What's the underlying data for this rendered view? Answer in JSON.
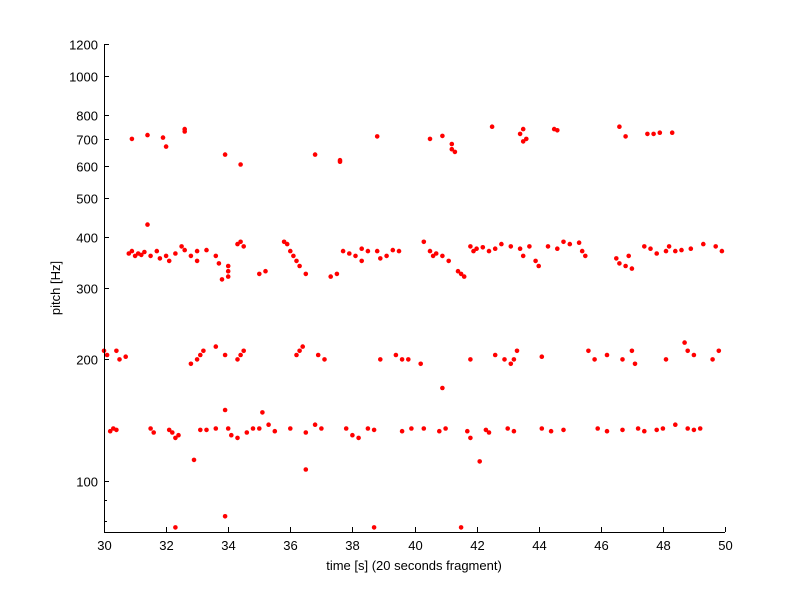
{
  "chart_data": {
    "type": "scatter",
    "xlabel": "time [s] (20 seconds fragment)",
    "ylabel": "pitch [Hz]",
    "xlim": [
      30,
      50
    ],
    "ylim": [
      75,
      1200
    ],
    "yscale": "log",
    "grid": false,
    "marker_color": "#ff0000",
    "x_ticks": [
      30,
      32,
      34,
      36,
      38,
      40,
      42,
      44,
      46,
      48,
      50
    ],
    "y_ticks": [
      100,
      200,
      300,
      400,
      500,
      600,
      700,
      800,
      1000,
      1200
    ],
    "y_minor_ticks": [
      80,
      90
    ],
    "points": [
      [
        30.9,
        700
      ],
      [
        31.4,
        715
      ],
      [
        31.9,
        705
      ],
      [
        32.0,
        670
      ],
      [
        32.6,
        730
      ],
      [
        32.6,
        740
      ],
      [
        33.9,
        640
      ],
      [
        34.4,
        605
      ],
      [
        36.8,
        640
      ],
      [
        37.6,
        615
      ],
      [
        37.6,
        620
      ],
      [
        38.8,
        710
      ],
      [
        40.5,
        700
      ],
      [
        40.9,
        712
      ],
      [
        41.2,
        680
      ],
      [
        41.2,
        660
      ],
      [
        41.3,
        650
      ],
      [
        42.5,
        750
      ],
      [
        43.4,
        720
      ],
      [
        43.5,
        740
      ],
      [
        43.6,
        700
      ],
      [
        43.5,
        690
      ],
      [
        44.5,
        740
      ],
      [
        44.6,
        735
      ],
      [
        46.6,
        750
      ],
      [
        46.8,
        710
      ],
      [
        47.5,
        720
      ],
      [
        47.7,
        720
      ],
      [
        47.9,
        725
      ],
      [
        48.3,
        725
      ],
      [
        31.4,
        430
      ],
      [
        30.8,
        365
      ],
      [
        30.9,
        370
      ],
      [
        31.0,
        360
      ],
      [
        31.1,
        365
      ],
      [
        31.2,
        362
      ],
      [
        31.3,
        368
      ],
      [
        31.5,
        360
      ],
      [
        31.7,
        370
      ],
      [
        31.8,
        355
      ],
      [
        32.0,
        360
      ],
      [
        32.1,
        350
      ],
      [
        32.3,
        365
      ],
      [
        32.5,
        380
      ],
      [
        32.6,
        372
      ],
      [
        32.8,
        360
      ],
      [
        33.0,
        370
      ],
      [
        33.0,
        350
      ],
      [
        33.3,
        372
      ],
      [
        33.6,
        360
      ],
      [
        33.7,
        345
      ],
      [
        33.8,
        315
      ],
      [
        34.0,
        340
      ],
      [
        34.0,
        330
      ],
      [
        34.0,
        320
      ],
      [
        34.3,
        385
      ],
      [
        34.4,
        390
      ],
      [
        34.5,
        380
      ],
      [
        35.0,
        325
      ],
      [
        35.2,
        330
      ],
      [
        35.8,
        390
      ],
      [
        35.9,
        385
      ],
      [
        36.0,
        370
      ],
      [
        36.1,
        360
      ],
      [
        36.2,
        350
      ],
      [
        36.3,
        340
      ],
      [
        36.5,
        325
      ],
      [
        37.3,
        320
      ],
      [
        37.5,
        325
      ],
      [
        37.7,
        370
      ],
      [
        37.9,
        365
      ],
      [
        38.1,
        360
      ],
      [
        38.3,
        350
      ],
      [
        38.3,
        375
      ],
      [
        38.5,
        370
      ],
      [
        38.8,
        370
      ],
      [
        38.9,
        355
      ],
      [
        39.1,
        360
      ],
      [
        39.3,
        372
      ],
      [
        39.5,
        370
      ],
      [
        40.3,
        390
      ],
      [
        40.5,
        370
      ],
      [
        40.6,
        360
      ],
      [
        40.7,
        365
      ],
      [
        40.9,
        360
      ],
      [
        41.1,
        350
      ],
      [
        41.4,
        330
      ],
      [
        41.5,
        325
      ],
      [
        41.6,
        320
      ],
      [
        41.8,
        380
      ],
      [
        41.9,
        370
      ],
      [
        42.0,
        375
      ],
      [
        42.2,
        378
      ],
      [
        42.4,
        370
      ],
      [
        42.6,
        375
      ],
      [
        42.8,
        385
      ],
      [
        43.1,
        380
      ],
      [
        43.4,
        375
      ],
      [
        43.5,
        360
      ],
      [
        43.7,
        380
      ],
      [
        43.9,
        350
      ],
      [
        44.0,
        340
      ],
      [
        44.3,
        380
      ],
      [
        44.6,
        375
      ],
      [
        44.8,
        390
      ],
      [
        45.0,
        385
      ],
      [
        45.3,
        388
      ],
      [
        45.4,
        370
      ],
      [
        45.5,
        360
      ],
      [
        46.5,
        355
      ],
      [
        46.6,
        345
      ],
      [
        46.8,
        340
      ],
      [
        46.9,
        360
      ],
      [
        47.0,
        335
      ],
      [
        47.4,
        380
      ],
      [
        47.6,
        375
      ],
      [
        47.8,
        365
      ],
      [
        48.1,
        370
      ],
      [
        48.2,
        380
      ],
      [
        48.4,
        370
      ],
      [
        48.6,
        372
      ],
      [
        48.9,
        375
      ],
      [
        49.3,
        385
      ],
      [
        49.7,
        380
      ],
      [
        49.9,
        370
      ],
      [
        30.0,
        210
      ],
      [
        30.1,
        205
      ],
      [
        30.4,
        210
      ],
      [
        30.5,
        200
      ],
      [
        30.7,
        203
      ],
      [
        32.8,
        195
      ],
      [
        33.0,
        200
      ],
      [
        33.1,
        205
      ],
      [
        33.2,
        210
      ],
      [
        33.6,
        215
      ],
      [
        33.9,
        205
      ],
      [
        34.3,
        200
      ],
      [
        34.4,
        205
      ],
      [
        34.5,
        210
      ],
      [
        36.2,
        205
      ],
      [
        36.3,
        210
      ],
      [
        36.4,
        215
      ],
      [
        36.9,
        205
      ],
      [
        37.1,
        200
      ],
      [
        38.9,
        200
      ],
      [
        39.4,
        205
      ],
      [
        39.6,
        200
      ],
      [
        39.8,
        200
      ],
      [
        40.2,
        195
      ],
      [
        41.8,
        200
      ],
      [
        42.6,
        205
      ],
      [
        42.9,
        200
      ],
      [
        43.1,
        195
      ],
      [
        43.2,
        200
      ],
      [
        43.3,
        210
      ],
      [
        44.1,
        203
      ],
      [
        45.6,
        210
      ],
      [
        45.8,
        200
      ],
      [
        46.2,
        205
      ],
      [
        46.7,
        200
      ],
      [
        47.0,
        210
      ],
      [
        47.1,
        195
      ],
      [
        48.1,
        200
      ],
      [
        48.7,
        220
      ],
      [
        48.8,
        210
      ],
      [
        49.0,
        205
      ],
      [
        49.6,
        200
      ],
      [
        49.8,
        210
      ],
      [
        40.9,
        170
      ],
      [
        30.2,
        133
      ],
      [
        30.3,
        135
      ],
      [
        30.4,
        134
      ],
      [
        31.5,
        135
      ],
      [
        31.6,
        132
      ],
      [
        32.1,
        134
      ],
      [
        32.2,
        132
      ],
      [
        32.3,
        128
      ],
      [
        32.4,
        130
      ],
      [
        33.1,
        134
      ],
      [
        33.3,
        134
      ],
      [
        33.6,
        135
      ],
      [
        33.9,
        150
      ],
      [
        34.0,
        135
      ],
      [
        34.1,
        130
      ],
      [
        34.3,
        128
      ],
      [
        34.6,
        132
      ],
      [
        34.8,
        135
      ],
      [
        35.0,
        135
      ],
      [
        35.1,
        148
      ],
      [
        35.3,
        138
      ],
      [
        35.5,
        133
      ],
      [
        36.0,
        135
      ],
      [
        36.5,
        132
      ],
      [
        36.8,
        138
      ],
      [
        37.0,
        135
      ],
      [
        37.8,
        135
      ],
      [
        38.0,
        130
      ],
      [
        38.2,
        128
      ],
      [
        38.5,
        135
      ],
      [
        38.7,
        134
      ],
      [
        39.6,
        133
      ],
      [
        39.9,
        135
      ],
      [
        40.3,
        135
      ],
      [
        40.8,
        133
      ],
      [
        41.0,
        135
      ],
      [
        41.7,
        133
      ],
      [
        41.8,
        128
      ],
      [
        42.3,
        134
      ],
      [
        42.4,
        132
      ],
      [
        43.0,
        135
      ],
      [
        43.2,
        133
      ],
      [
        44.1,
        135
      ],
      [
        44.4,
        133
      ],
      [
        44.8,
        134
      ],
      [
        45.9,
        135
      ],
      [
        46.2,
        133
      ],
      [
        46.7,
        134
      ],
      [
        47.2,
        135
      ],
      [
        47.4,
        133
      ],
      [
        47.8,
        134
      ],
      [
        48.0,
        135
      ],
      [
        48.4,
        138
      ],
      [
        48.8,
        135
      ],
      [
        49.0,
        134
      ],
      [
        49.2,
        135
      ],
      [
        32.9,
        113
      ],
      [
        36.5,
        107
      ],
      [
        42.1,
        112
      ],
      [
        33.9,
        82
      ],
      [
        32.3,
        77
      ],
      [
        38.7,
        77
      ],
      [
        41.5,
        77
      ]
    ]
  }
}
